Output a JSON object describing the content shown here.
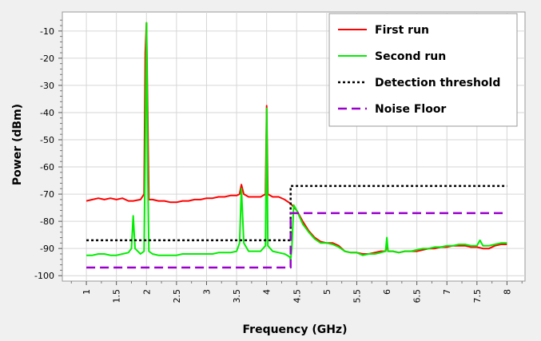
{
  "chart_data": {
    "type": "line",
    "xlabel": "Frequency (GHz)",
    "ylabel": "Power (dBm)",
    "xlim": [
      0.6,
      8.3
    ],
    "ylim": [
      -102,
      -3
    ],
    "x_ticks": [
      1,
      1.5,
      2,
      2.5,
      3,
      3.5,
      4,
      4.5,
      5,
      5.5,
      6,
      6.5,
      7,
      7.5,
      8
    ],
    "y_ticks": [
      -100,
      -90,
      -80,
      -70,
      -60,
      -50,
      -40,
      -30,
      -20,
      -10
    ],
    "grid": true,
    "legend_position": "top-right",
    "series": [
      {
        "name": "First run",
        "color": "#ff0000",
        "style": "solid",
        "points": [
          [
            1.0,
            -72.5
          ],
          [
            1.1,
            -72
          ],
          [
            1.2,
            -71.5
          ],
          [
            1.3,
            -72
          ],
          [
            1.4,
            -71.5
          ],
          [
            1.5,
            -72
          ],
          [
            1.6,
            -71.5
          ],
          [
            1.7,
            -72.5
          ],
          [
            1.78,
            -72.5
          ],
          [
            1.9,
            -72
          ],
          [
            1.96,
            -70
          ],
          [
            1.98,
            -18
          ],
          [
            2.0,
            -7
          ],
          [
            2.02,
            -40
          ],
          [
            2.04,
            -72
          ],
          [
            2.1,
            -72
          ],
          [
            2.2,
            -72.5
          ],
          [
            2.3,
            -72.5
          ],
          [
            2.4,
            -73
          ],
          [
            2.5,
            -73
          ],
          [
            2.6,
            -72.5
          ],
          [
            2.7,
            -72.5
          ],
          [
            2.8,
            -72
          ],
          [
            2.9,
            -72
          ],
          [
            3.0,
            -71.5
          ],
          [
            3.1,
            -71.5
          ],
          [
            3.2,
            -71
          ],
          [
            3.3,
            -71
          ],
          [
            3.4,
            -70.5
          ],
          [
            3.5,
            -70.5
          ],
          [
            3.55,
            -70
          ],
          [
            3.58,
            -66.5
          ],
          [
            3.62,
            -70
          ],
          [
            3.7,
            -71
          ],
          [
            3.8,
            -71
          ],
          [
            3.9,
            -71
          ],
          [
            3.98,
            -70
          ],
          [
            4.0,
            -37.5
          ],
          [
            4.02,
            -70
          ],
          [
            4.1,
            -71
          ],
          [
            4.2,
            -71
          ],
          [
            4.3,
            -72
          ],
          [
            4.4,
            -73.5
          ],
          [
            4.5,
            -76
          ],
          [
            4.6,
            -80
          ],
          [
            4.7,
            -83.5
          ],
          [
            4.8,
            -86
          ],
          [
            4.9,
            -87.5
          ],
          [
            5.0,
            -88
          ],
          [
            5.1,
            -88
          ],
          [
            5.2,
            -89
          ],
          [
            5.3,
            -91
          ],
          [
            5.4,
            -91.5
          ],
          [
            5.5,
            -91.5
          ],
          [
            5.6,
            -92
          ],
          [
            5.7,
            -92
          ],
          [
            5.8,
            -91.5
          ],
          [
            5.9,
            -91
          ],
          [
            5.98,
            -91
          ],
          [
            6.0,
            -88
          ],
          [
            6.02,
            -91
          ],
          [
            6.1,
            -91
          ],
          [
            6.2,
            -91.5
          ],
          [
            6.3,
            -91
          ],
          [
            6.4,
            -91
          ],
          [
            6.5,
            -91
          ],
          [
            6.6,
            -90.5
          ],
          [
            6.7,
            -90
          ],
          [
            6.8,
            -90
          ],
          [
            6.9,
            -89.5
          ],
          [
            7.0,
            -89.5
          ],
          [
            7.1,
            -89
          ],
          [
            7.2,
            -89
          ],
          [
            7.3,
            -89
          ],
          [
            7.4,
            -89.5
          ],
          [
            7.5,
            -89.5
          ],
          [
            7.6,
            -90
          ],
          [
            7.7,
            -90
          ],
          [
            7.8,
            -89
          ],
          [
            7.9,
            -88.5
          ],
          [
            8.0,
            -88.5
          ]
        ]
      },
      {
        "name": "Second run",
        "color": "#00ee00",
        "style": "solid",
        "points": [
          [
            1.0,
            -92.5
          ],
          [
            1.1,
            -92.5
          ],
          [
            1.2,
            -92
          ],
          [
            1.3,
            -92
          ],
          [
            1.4,
            -92.5
          ],
          [
            1.5,
            -92.5
          ],
          [
            1.6,
            -92
          ],
          [
            1.7,
            -91.5
          ],
          [
            1.75,
            -90
          ],
          [
            1.78,
            -78
          ],
          [
            1.81,
            -90
          ],
          [
            1.9,
            -92
          ],
          [
            1.96,
            -91
          ],
          [
            1.98,
            -50
          ],
          [
            2.0,
            -7
          ],
          [
            2.02,
            -60
          ],
          [
            2.04,
            -91
          ],
          [
            2.1,
            -92
          ],
          [
            2.2,
            -92.5
          ],
          [
            2.3,
            -92.5
          ],
          [
            2.4,
            -92.5
          ],
          [
            2.5,
            -92.5
          ],
          [
            2.6,
            -92
          ],
          [
            2.7,
            -92
          ],
          [
            2.8,
            -92
          ],
          [
            2.9,
            -92
          ],
          [
            3.0,
            -92
          ],
          [
            3.1,
            -92
          ],
          [
            3.2,
            -91.5
          ],
          [
            3.3,
            -91.5
          ],
          [
            3.4,
            -91.5
          ],
          [
            3.5,
            -91
          ],
          [
            3.55,
            -88
          ],
          [
            3.58,
            -68
          ],
          [
            3.62,
            -88
          ],
          [
            3.7,
            -91
          ],
          [
            3.8,
            -91
          ],
          [
            3.9,
            -91
          ],
          [
            3.98,
            -89
          ],
          [
            4.0,
            -38.5
          ],
          [
            4.02,
            -89
          ],
          [
            4.1,
            -91
          ],
          [
            4.2,
            -91.5
          ],
          [
            4.3,
            -92
          ],
          [
            4.38,
            -93
          ],
          [
            4.4,
            -94
          ],
          [
            4.42,
            -90
          ],
          [
            4.45,
            -74
          ],
          [
            4.5,
            -76
          ],
          [
            4.6,
            -81
          ],
          [
            4.7,
            -84
          ],
          [
            4.8,
            -86.5
          ],
          [
            4.9,
            -88
          ],
          [
            5.0,
            -88
          ],
          [
            5.1,
            -88.5
          ],
          [
            5.2,
            -89.5
          ],
          [
            5.3,
            -91
          ],
          [
            5.4,
            -91.5
          ],
          [
            5.5,
            -91.5
          ],
          [
            5.6,
            -92.5
          ],
          [
            5.7,
            -92
          ],
          [
            5.8,
            -92
          ],
          [
            5.9,
            -91.5
          ],
          [
            5.98,
            -91
          ],
          [
            6.0,
            -86
          ],
          [
            6.02,
            -91
          ],
          [
            6.1,
            -91
          ],
          [
            6.2,
            -91.5
          ],
          [
            6.3,
            -91
          ],
          [
            6.4,
            -91
          ],
          [
            6.5,
            -90.5
          ],
          [
            6.6,
            -90
          ],
          [
            6.7,
            -90
          ],
          [
            6.8,
            -89.5
          ],
          [
            6.9,
            -89.5
          ],
          [
            7.0,
            -89
          ],
          [
            7.1,
            -89
          ],
          [
            7.2,
            -88.5
          ],
          [
            7.3,
            -88.5
          ],
          [
            7.4,
            -89
          ],
          [
            7.5,
            -89
          ],
          [
            7.55,
            -87
          ],
          [
            7.6,
            -89
          ],
          [
            7.7,
            -89
          ],
          [
            7.8,
            -88.5
          ],
          [
            7.9,
            -88
          ],
          [
            8.0,
            -88
          ]
        ]
      },
      {
        "name": "Detection threshold",
        "color": "#000000",
        "style": "dotted",
        "points": [
          [
            1.0,
            -87
          ],
          [
            4.4,
            -87
          ],
          [
            4.4,
            -67
          ],
          [
            8.0,
            -67
          ]
        ]
      },
      {
        "name": "Noise Floor",
        "color": "#9900cc",
        "style": "dashed",
        "points": [
          [
            1.0,
            -97
          ],
          [
            4.4,
            -97
          ],
          [
            4.4,
            -77
          ],
          [
            8.0,
            -77
          ]
        ]
      }
    ]
  }
}
